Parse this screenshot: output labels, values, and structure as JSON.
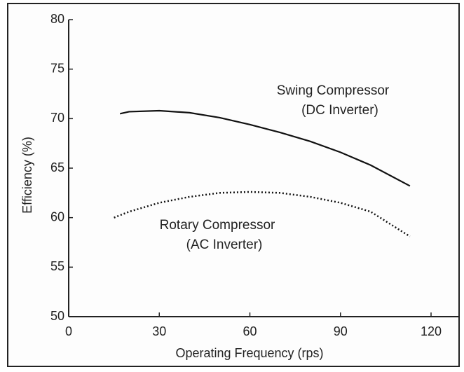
{
  "chart_data": {
    "type": "line",
    "xlabel": "Operating Frequency (rps)",
    "ylabel": "Efficiency (%)",
    "xlim": [
      0,
      120
    ],
    "xticks": [
      0,
      30,
      60,
      90,
      120
    ],
    "ylim": [
      50,
      80
    ],
    "yticks": [
      50,
      55,
      60,
      65,
      70,
      75,
      80
    ],
    "series": [
      {
        "style": "solid",
        "color": "#111111",
        "x": [
          17,
          20,
          30,
          40,
          50,
          60,
          70,
          80,
          90,
          100,
          113
        ],
        "values": [
          70.5,
          70.7,
          70.8,
          70.6,
          70.1,
          69.4,
          68.6,
          67.7,
          66.6,
          65.3,
          63.2
        ]
      },
      {
        "style": "dotted",
        "color": "#111111",
        "x": [
          15,
          20,
          30,
          40,
          50,
          60,
          70,
          80,
          90,
          100,
          113
        ],
        "values": [
          60.0,
          60.6,
          61.5,
          62.1,
          62.5,
          62.6,
          62.5,
          62.1,
          61.5,
          60.6,
          58.1
        ]
      }
    ],
    "annotations": [
      "Swing Compressor",
      "(DC Inverter)",
      "Rotary Compressor",
      "(AC Inverter)"
    ]
  }
}
